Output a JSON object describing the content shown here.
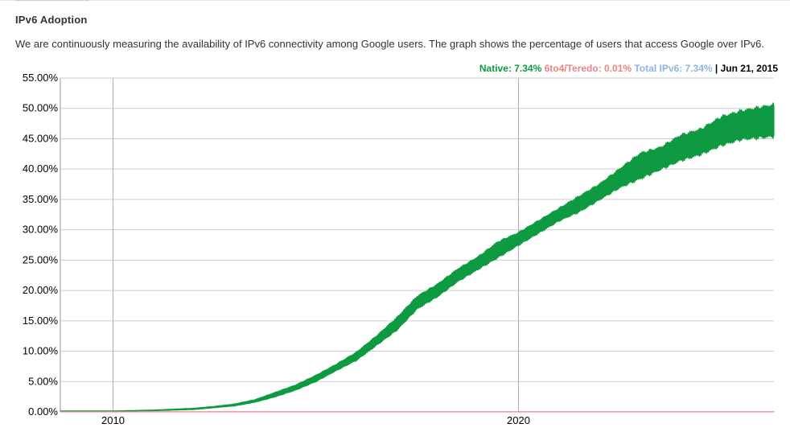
{
  "page": {
    "title": "IPv6 Adoption",
    "description": "We are continuously measuring the availability of IPv6 connectivity among Google users. The graph shows the percentage of users that access Google over IPv6."
  },
  "legend": {
    "native": "Native: 7.34%",
    "teredo": "6to4/Teredo: 0.01%",
    "total": "Total IPv6: 7.34%",
    "date": "| Jun 21, 2015"
  },
  "colors": {
    "native": "#0d9a40",
    "teredo": "#e98484",
    "total": "#8fb4e0",
    "text": "#333333",
    "grid": "#cccccc",
    "accent": "#000000"
  },
  "chart_data": {
    "type": "area",
    "title": "",
    "xlabel": "",
    "ylabel": "",
    "x_ticks": [
      2010,
      2020
    ],
    "y_ticks": [
      "0.00%",
      "5.00%",
      "10.00%",
      "15.00%",
      "20.00%",
      "25.00%",
      "30.00%",
      "35.00%",
      "40.00%",
      "45.00%",
      "50.00%",
      "55.00%"
    ],
    "xlim": [
      2008.7,
      2026.3
    ],
    "ylim": [
      0,
      55
    ],
    "grid": true,
    "legend_position": "top-right",
    "series": [
      {
        "name": "Native",
        "x": [
          2008.7,
          2010.0,
          2011.0,
          2012.0,
          2012.5,
          2013.0,
          2013.5,
          2014.0,
          2014.5,
          2015.0,
          2015.5,
          2016.0,
          2016.5,
          2017.0,
          2017.5,
          2018.0,
          2018.5,
          2019.0,
          2019.5,
          2020.0,
          2020.5,
          2021.0,
          2021.5,
          2022.0,
          2022.5,
          2023.0,
          2023.5,
          2024.0,
          2024.5,
          2025.0,
          2025.5,
          2026.3
        ],
        "low": [
          0.1,
          0.1,
          0.2,
          0.4,
          0.7,
          1.0,
          1.6,
          2.5,
          3.6,
          5.0,
          6.8,
          8.5,
          11.0,
          13.5,
          17.0,
          19.0,
          21.5,
          23.5,
          25.5,
          27.5,
          29.5,
          31.5,
          33.0,
          35.0,
          37.0,
          38.5,
          40.0,
          41.5,
          42.5,
          44.0,
          45.0,
          45.5
        ],
        "high": [
          0.15,
          0.15,
          0.3,
          0.6,
          0.9,
          1.3,
          2.0,
          3.2,
          4.4,
          6.0,
          7.8,
          9.8,
          12.5,
          15.5,
          19.0,
          21.0,
          23.5,
          25.5,
          28.0,
          29.5,
          31.5,
          33.5,
          35.5,
          37.5,
          40.0,
          42.5,
          43.5,
          45.5,
          46.5,
          48.5,
          49.5,
          50.5
        ]
      },
      {
        "name": "6to4/Teredo",
        "x": [
          2008.7,
          2026.3
        ],
        "low": [
          0.01,
          0.01
        ],
        "high": [
          0.01,
          0.01
        ]
      }
    ]
  }
}
